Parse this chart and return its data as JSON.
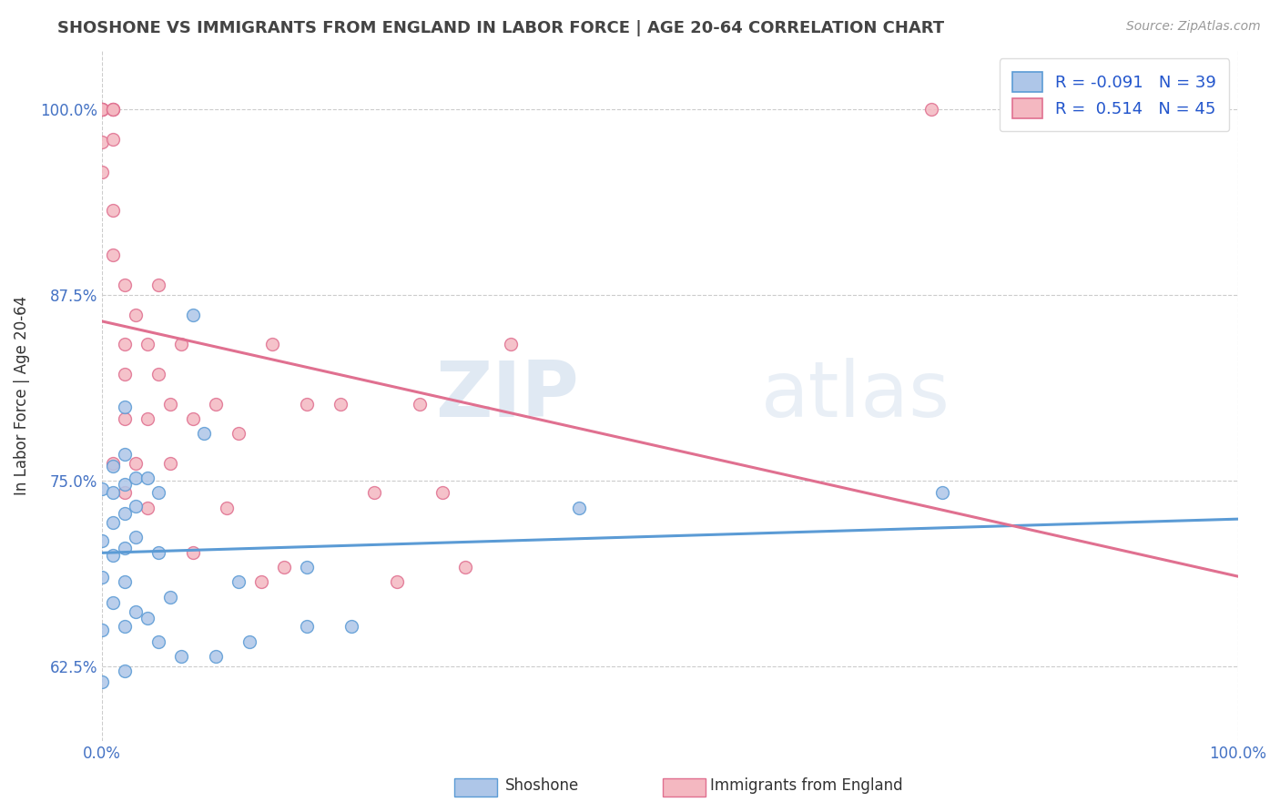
{
  "title": "SHOSHONE VS IMMIGRANTS FROM ENGLAND IN LABOR FORCE | AGE 20-64 CORRELATION CHART",
  "source_text": "Source: ZipAtlas.com",
  "ylabel": "In Labor Force | Age 20-64",
  "xlim": [
    0.0,
    1.0
  ],
  "ylim": [
    0.575,
    1.04
  ],
  "yticks": [
    0.625,
    0.75,
    0.875,
    1.0
  ],
  "ytick_labels": [
    "62.5%",
    "75.0%",
    "87.5%",
    "100.0%"
  ],
  "xticks": [
    0.0,
    1.0
  ],
  "xtick_labels": [
    "0.0%",
    "100.0%"
  ],
  "legend_r_blue": "R = -0.091",
  "legend_n_blue": "N = 39",
  "legend_r_pink": "R =  0.514",
  "legend_n_pink": "N = 45",
  "watermark_zip": "ZIP",
  "watermark_atlas": "atlas",
  "shoshone_color": "#aec6e8",
  "shoshone_edge": "#5b9bd5",
  "england_color": "#f4b8c1",
  "england_edge": "#e07090",
  "trend_blue": "#5b9bd5",
  "trend_pink": "#e07090",
  "tick_color": "#4472c4",
  "shoshone_x": [
    0.0,
    0.0,
    0.0,
    0.0,
    0.0,
    0.01,
    0.01,
    0.01,
    0.01,
    0.01,
    0.02,
    0.02,
    0.02,
    0.02,
    0.02,
    0.02,
    0.02,
    0.02,
    0.03,
    0.03,
    0.03,
    0.03,
    0.04,
    0.04,
    0.05,
    0.05,
    0.05,
    0.06,
    0.07,
    0.08,
    0.09,
    0.1,
    0.12,
    0.13,
    0.18,
    0.18,
    0.22,
    0.42,
    0.74
  ],
  "shoshone_y": [
    0.745,
    0.71,
    0.685,
    0.65,
    0.615,
    0.76,
    0.742,
    0.722,
    0.7,
    0.668,
    0.8,
    0.768,
    0.748,
    0.728,
    0.705,
    0.682,
    0.652,
    0.622,
    0.752,
    0.733,
    0.712,
    0.662,
    0.752,
    0.658,
    0.742,
    0.702,
    0.642,
    0.672,
    0.632,
    0.862,
    0.782,
    0.632,
    0.682,
    0.642,
    0.692,
    0.652,
    0.652,
    0.732,
    0.742
  ],
  "england_x": [
    0.0,
    0.0,
    0.0,
    0.0,
    0.0,
    0.0,
    0.01,
    0.01,
    0.01,
    0.01,
    0.01,
    0.01,
    0.01,
    0.02,
    0.02,
    0.02,
    0.02,
    0.02,
    0.03,
    0.03,
    0.04,
    0.04,
    0.04,
    0.05,
    0.05,
    0.06,
    0.06,
    0.07,
    0.08,
    0.08,
    0.1,
    0.11,
    0.12,
    0.14,
    0.15,
    0.16,
    0.18,
    0.21,
    0.24,
    0.26,
    0.28,
    0.3,
    0.32,
    0.36,
    0.73
  ],
  "england_y": [
    1.0,
    1.0,
    1.0,
    1.0,
    0.978,
    0.958,
    1.0,
    1.0,
    1.0,
    0.98,
    0.932,
    0.902,
    0.762,
    0.882,
    0.842,
    0.822,
    0.792,
    0.742,
    0.862,
    0.762,
    0.842,
    0.792,
    0.732,
    0.882,
    0.822,
    0.802,
    0.762,
    0.842,
    0.792,
    0.702,
    0.802,
    0.732,
    0.782,
    0.682,
    0.842,
    0.692,
    0.802,
    0.802,
    0.742,
    0.682,
    0.802,
    0.742,
    0.692,
    0.842,
    1.0
  ],
  "background_color": "#ffffff",
  "grid_color": "#cccccc"
}
